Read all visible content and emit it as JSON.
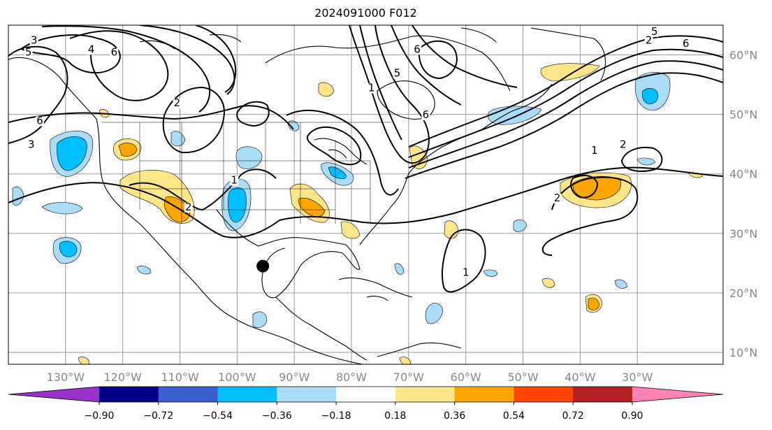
{
  "title": "2024091000 F012",
  "colors": {
    "grid": "#9a9a9a",
    "contour": "#000000",
    "coast": "#000000",
    "marker": "#000000"
  },
  "map": {
    "lon_range": [
      -140,
      -15
    ],
    "lat_range": [
      8,
      65
    ],
    "lon_ticks": [
      {
        "value": -130,
        "label": "130°W"
      },
      {
        "value": -120,
        "label": "120°W"
      },
      {
        "value": -110,
        "label": "110°W"
      },
      {
        "value": -100,
        "label": "100°W"
      },
      {
        "value": -90,
        "label": "90°W"
      },
      {
        "value": -80,
        "label": "80°W"
      },
      {
        "value": -70,
        "label": "70°W"
      },
      {
        "value": -60,
        "label": "60°W"
      },
      {
        "value": -50,
        "label": "50°W"
      },
      {
        "value": -40,
        "label": "40°W"
      },
      {
        "value": -30,
        "label": "30°W"
      }
    ],
    "lat_ticks": [
      {
        "value": 60,
        "label": "60°N"
      },
      {
        "value": 50,
        "label": "50°N"
      },
      {
        "value": 40,
        "label": "40°N"
      },
      {
        "value": 30,
        "label": "30°N"
      },
      {
        "value": 20,
        "label": "20°N"
      },
      {
        "value": 10,
        "label": "10°N"
      }
    ],
    "marker": {
      "lon": -95.5,
      "lat": 24.5
    }
  },
  "contour_labels": [
    {
      "text": "3",
      "lon": -135.5,
      "lat": 62.0
    },
    {
      "text": "4",
      "lon": -125.5,
      "lat": 60.5
    },
    {
      "text": "6",
      "lon": -121.5,
      "lat": 60.0
    },
    {
      "text": "5",
      "lon": -136.5,
      "lat": 60.0
    },
    {
      "text": "6",
      "lon": -134.5,
      "lat": 48.5
    },
    {
      "text": "3",
      "lon": -136.0,
      "lat": 44.5
    },
    {
      "text": "2",
      "lon": -110.5,
      "lat": 51.5
    },
    {
      "text": "1",
      "lon": -76.5,
      "lat": 54.0
    },
    {
      "text": "1",
      "lon": -100.5,
      "lat": 38.5
    },
    {
      "text": "2",
      "lon": -108.5,
      "lat": 34.0
    },
    {
      "text": "6",
      "lon": -68.5,
      "lat": 60.5
    },
    {
      "text": "5",
      "lon": -72.0,
      "lat": 56.5
    },
    {
      "text": "6",
      "lon": -67.0,
      "lat": 49.5
    },
    {
      "text": "5",
      "lon": -27.0,
      "lat": 63.5
    },
    {
      "text": "2",
      "lon": -28.0,
      "lat": 62.0
    },
    {
      "text": "6",
      "lon": -21.5,
      "lat": 61.5
    },
    {
      "text": "1",
      "lon": -37.5,
      "lat": 43.5
    },
    {
      "text": "2",
      "lon": -32.5,
      "lat": 44.5
    },
    {
      "text": "1",
      "lon": -60.0,
      "lat": 23.0
    },
    {
      "text": "2",
      "lon": -44.0,
      "lat": 35.5
    }
  ],
  "colorbar": {
    "levels": [
      "−0.90",
      "−0.72",
      "−0.54",
      "−0.36",
      "−0.18",
      "0.18",
      "0.36",
      "0.54",
      "0.72",
      "0.90"
    ],
    "colors": [
      "#9933cc",
      "#00008b",
      "#3a5fcd",
      "#00bfff",
      "#aadcf8",
      "#ffffff",
      "#fde68a",
      "#ffa500",
      "#ff4500",
      "#b22222",
      "#ff82b4"
    ]
  }
}
